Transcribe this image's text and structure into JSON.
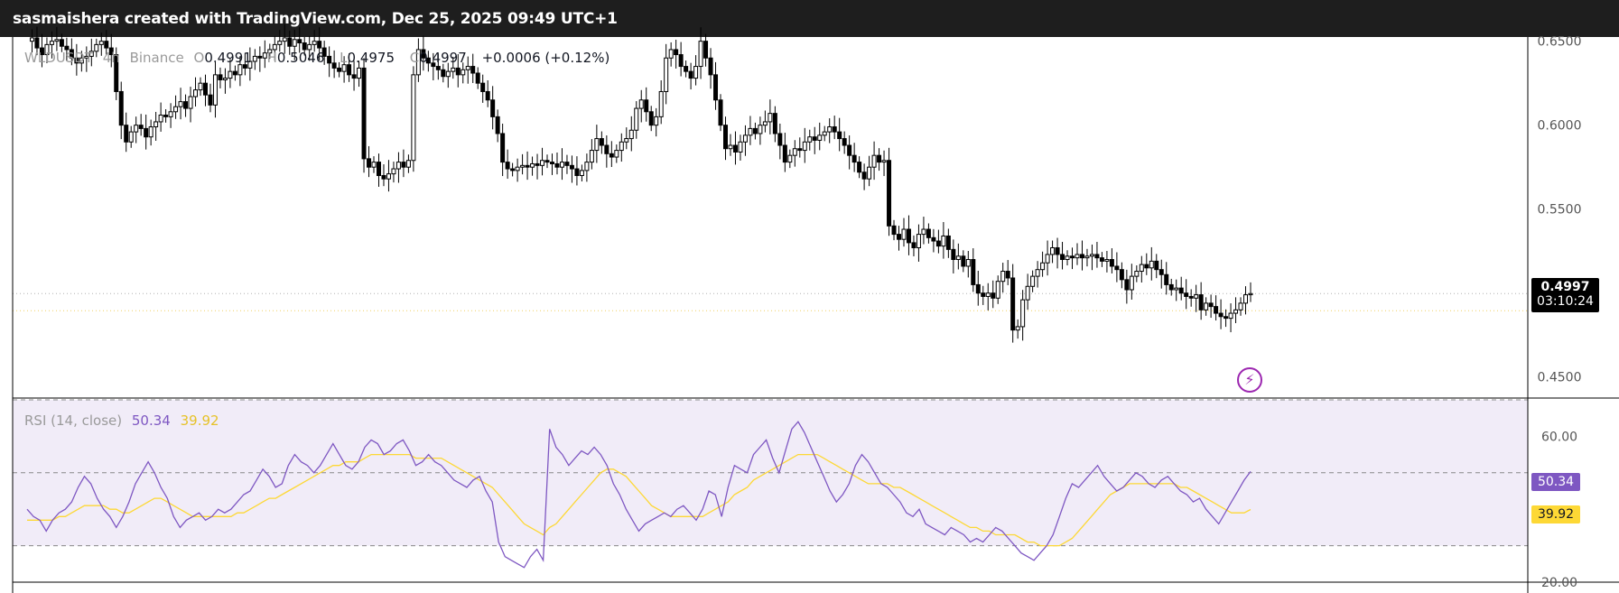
{
  "header": {
    "caption": "sasmaishera created with TradingView.com, Dec 25, 2025 09:49 UTC+1"
  },
  "colors": {
    "header_bg": "#1e1e1e",
    "candle": "#000000",
    "rsi_line": "#7e57c2",
    "rsi_ma": "#fdd835",
    "rsi_band": "#ede7f6",
    "price_tag": "#000000",
    "rsi_tag": "#7e57c2",
    "ma_tag": "#fdd835"
  },
  "legend": {
    "symbol": "WLDUSDT",
    "interval": "4h",
    "exchange": "Binance",
    "open_label": "O",
    "open": "0.4991",
    "high_label": "H",
    "high": "0.5046",
    "low_label": "L",
    "low": "0.4975",
    "close_label": "C",
    "close": "0.4997",
    "change": "+0.0006 (+0.12%)"
  },
  "rsi_legend": {
    "label": "RSI (14, close)",
    "rsi_value": "50.34",
    "ma_value": "39.92"
  },
  "price_tag": {
    "value": "0.4997",
    "countdown": "03:10:24"
  },
  "rsi_tags": {
    "rsi": "50.34",
    "ma": "39.92"
  },
  "chart_data": [
    {
      "type": "candlestick",
      "title": "WLDUSDT · 4h · Binance",
      "ylim": [
        0.4375,
        0.6525
      ],
      "y_ticks": [
        "0.6500",
        "0.6000",
        "0.5500",
        "0.4500"
      ],
      "last_price": 0.4997,
      "price_series": [
        0.65,
        0.652,
        0.646,
        0.642,
        0.648,
        0.65,
        0.651,
        0.647,
        0.645,
        0.64,
        0.637,
        0.64,
        0.641,
        0.644,
        0.648,
        0.65,
        0.646,
        0.642,
        0.62,
        0.6,
        0.59,
        0.596,
        0.6,
        0.598,
        0.593,
        0.599,
        0.602,
        0.606,
        0.605,
        0.608,
        0.611,
        0.614,
        0.61,
        0.617,
        0.621,
        0.625,
        0.618,
        0.612,
        0.63,
        0.627,
        0.628,
        0.632,
        0.63,
        0.636,
        0.634,
        0.638,
        0.641,
        0.64,
        0.643,
        0.645,
        0.648,
        0.65,
        0.652,
        0.647,
        0.651,
        0.649,
        0.645,
        0.648,
        0.65,
        0.646,
        0.641,
        0.637,
        0.634,
        0.632,
        0.636,
        0.63,
        0.628,
        0.634,
        0.58,
        0.575,
        0.578,
        0.57,
        0.568,
        0.571,
        0.574,
        0.578,
        0.575,
        0.579,
        0.63,
        0.645,
        0.64,
        0.637,
        0.635,
        0.633,
        0.629,
        0.632,
        0.634,
        0.63,
        0.633,
        0.635,
        0.631,
        0.625,
        0.62,
        0.615,
        0.605,
        0.595,
        0.578,
        0.574,
        0.573,
        0.575,
        0.576,
        0.575,
        0.577,
        0.576,
        0.579,
        0.578,
        0.577,
        0.575,
        0.578,
        0.576,
        0.574,
        0.57,
        0.573,
        0.578,
        0.585,
        0.592,
        0.588,
        0.583,
        0.581,
        0.585,
        0.59,
        0.592,
        0.597,
        0.61,
        0.615,
        0.608,
        0.6,
        0.605,
        0.62,
        0.64,
        0.645,
        0.642,
        0.635,
        0.632,
        0.628,
        0.635,
        0.65,
        0.64,
        0.63,
        0.615,
        0.6,
        0.586,
        0.588,
        0.584,
        0.59,
        0.594,
        0.598,
        0.595,
        0.6,
        0.602,
        0.607,
        0.595,
        0.588,
        0.578,
        0.582,
        0.586,
        0.585,
        0.59,
        0.593,
        0.591,
        0.594,
        0.596,
        0.599,
        0.596,
        0.592,
        0.588,
        0.582,
        0.578,
        0.572,
        0.568,
        0.575,
        0.582,
        0.578,
        0.579,
        0.54,
        0.535,
        0.532,
        0.538,
        0.53,
        0.527,
        0.535,
        0.538,
        0.533,
        0.531,
        0.528,
        0.534,
        0.526,
        0.52,
        0.522,
        0.516,
        0.52,
        0.505,
        0.5,
        0.498,
        0.5,
        0.497,
        0.507,
        0.513,
        0.509,
        0.478,
        0.48,
        0.496,
        0.504,
        0.51,
        0.514,
        0.518,
        0.523,
        0.527,
        0.523,
        0.52,
        0.522,
        0.521,
        0.523,
        0.521,
        0.522,
        0.523,
        0.521,
        0.519,
        0.52,
        0.516,
        0.514,
        0.508,
        0.502,
        0.51,
        0.513,
        0.517,
        0.515,
        0.519,
        0.514,
        0.511,
        0.505,
        0.502,
        0.503,
        0.5,
        0.498,
        0.497,
        0.499,
        0.49,
        0.494,
        0.492,
        0.488,
        0.486,
        0.485,
        0.488,
        0.49,
        0.494,
        0.499,
        0.4997
      ]
    },
    {
      "type": "line",
      "title": "RSI (14, close)",
      "ylim": [
        20,
        70
      ],
      "y_ticks": [
        60,
        20
      ],
      "bands": [
        70,
        50,
        30
      ],
      "series": [
        {
          "name": "RSI",
          "values": [
            40,
            38,
            37,
            34,
            37,
            39,
            40,
            42,
            46,
            49,
            47,
            43,
            40,
            38,
            35,
            38,
            42,
            47,
            50,
            53,
            50,
            46,
            43,
            38,
            35,
            37,
            38,
            39,
            37,
            38,
            40,
            39,
            40,
            42,
            44,
            45,
            48,
            51,
            49,
            46,
            47,
            52,
            55,
            53,
            52,
            50,
            52,
            55,
            58,
            55,
            52,
            51,
            53,
            57,
            59,
            58,
            55,
            56,
            58,
            59,
            56,
            52,
            53,
            55,
            53,
            52,
            50,
            48,
            47,
            46,
            48,
            49,
            45,
            42,
            31,
            27,
            26,
            25,
            24,
            27,
            29,
            26,
            62,
            57,
            55,
            52,
            54,
            56,
            55,
            57,
            55,
            52,
            47,
            44,
            40,
            37,
            34,
            36,
            37,
            38,
            39,
            38,
            40,
            41,
            39,
            37,
            40,
            45,
            44,
            38,
            46,
            52,
            51,
            50,
            55,
            57,
            59,
            54,
            50,
            56,
            62,
            64,
            61,
            57,
            53,
            49,
            45,
            42,
            44,
            47,
            52,
            55,
            53,
            50,
            47,
            46,
            44,
            42,
            39,
            38,
            40,
            36,
            35,
            34,
            33,
            35,
            34,
            33,
            31,
            32,
            31,
            33,
            35,
            34,
            32,
            30,
            28,
            27,
            26,
            28,
            30,
            33,
            38,
            43,
            47,
            46,
            48,
            50,
            52,
            49,
            47,
            45,
            46,
            48,
            50,
            49,
            47,
            46,
            48,
            49,
            47,
            45,
            44,
            42,
            43,
            40,
            38,
            36,
            39,
            42,
            45,
            48,
            50.34
          ]
        },
        {
          "name": "MA",
          "values": [
            37,
            37,
            37,
            37,
            37,
            38,
            38,
            39,
            40,
            41,
            41,
            41,
            41,
            40,
            40,
            39,
            39,
            40,
            41,
            42,
            43,
            43,
            42,
            41,
            40,
            39,
            38,
            38,
            38,
            38,
            38,
            38,
            38,
            39,
            39,
            40,
            41,
            42,
            43,
            43,
            44,
            45,
            46,
            47,
            48,
            49,
            50,
            51,
            52,
            52,
            53,
            53,
            53,
            54,
            55,
            55,
            55,
            55,
            55,
            55,
            55,
            54,
            54,
            54,
            54,
            54,
            53,
            52,
            51,
            50,
            49,
            48,
            47,
            46,
            44,
            42,
            40,
            38,
            36,
            35,
            34,
            33,
            35,
            36,
            38,
            40,
            42,
            44,
            46,
            48,
            50,
            51,
            51,
            50,
            49,
            47,
            45,
            43,
            41,
            40,
            39,
            38,
            38,
            38,
            38,
            38,
            38,
            39,
            40,
            41,
            42,
            44,
            45,
            46,
            48,
            49,
            50,
            51,
            52,
            53,
            54,
            55,
            55,
            55,
            55,
            54,
            53,
            52,
            51,
            50,
            49,
            48,
            47,
            47,
            47,
            47,
            46,
            46,
            45,
            44,
            43,
            42,
            41,
            40,
            39,
            38,
            37,
            36,
            35,
            35,
            34,
            34,
            33,
            33,
            33,
            33,
            32,
            31,
            31,
            30,
            30,
            30,
            30,
            31,
            32,
            34,
            36,
            38,
            40,
            42,
            44,
            45,
            46,
            47,
            47,
            47,
            47,
            47,
            47,
            47,
            47,
            46,
            46,
            45,
            44,
            43,
            42,
            41,
            40,
            39,
            39,
            39,
            39.92
          ]
        }
      ]
    }
  ]
}
